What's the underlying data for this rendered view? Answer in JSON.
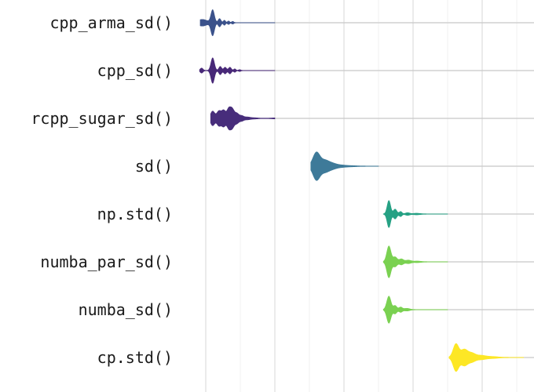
{
  "chart_data": {
    "type": "violin",
    "title": "",
    "xlabel": "",
    "ylabel": "",
    "x_axis_ticks_printed": false,
    "grid": "vertical",
    "categories": [
      "cpp_arma_sd()",
      "cpp_sd()",
      "rcpp_sugar_sd()",
      "sd()",
      "np.std()",
      "numba_par_sd()",
      "numba_sd()",
      "cp.std()"
    ],
    "series": [
      {
        "category": "cpp_arma_sd()",
        "color": "#3b528b",
        "median": 0.1,
        "range": [
          -0.05,
          1.0
        ],
        "modes": [
          [
            -0.05,
            0.07,
            4
          ],
          [
            0.1,
            0.025,
            16
          ],
          [
            0.2,
            0.02,
            5
          ],
          [
            0.27,
            0.015,
            3
          ],
          [
            0.33,
            0.015,
            2
          ],
          [
            0.39,
            0.015,
            1.5
          ]
        ]
      },
      {
        "category": "cpp_sd()",
        "color": "#482878",
        "median": 0.1,
        "range": [
          -0.06,
          1.0
        ],
        "modes": [
          [
            -0.06,
            0.02,
            3
          ],
          [
            0.1,
            0.025,
            16
          ],
          [
            0.21,
            0.02,
            5
          ],
          [
            0.28,
            0.02,
            4
          ],
          [
            0.35,
            0.02,
            4
          ],
          [
            0.42,
            0.015,
            2
          ],
          [
            0.49,
            0.015,
            1
          ]
        ]
      },
      {
        "category": "rcpp_sugar_sd()",
        "color": "#472d7b",
        "median": 0.38,
        "range": [
          0.1,
          1.0
        ],
        "modes": [
          [
            0.1,
            0.03,
            9
          ],
          [
            0.19,
            0.03,
            9
          ],
          [
            0.26,
            0.03,
            10
          ],
          [
            0.33,
            0.025,
            10
          ],
          [
            0.38,
            0.03,
            12
          ],
          [
            0.45,
            0.03,
            6
          ],
          [
            0.52,
            0.03,
            3
          ],
          [
            0.6,
            0.04,
            1.5
          ],
          [
            0.7,
            0.05,
            0.6
          ],
          [
            1.03,
            0.07,
            0.5
          ]
        ]
      },
      {
        "category": "sd()",
        "color": "#3e7a99",
        "median": 1.6,
        "range": [
          1.55,
          2.5
        ],
        "modes": [
          [
            1.6,
            0.05,
            17
          ],
          [
            1.72,
            0.06,
            7
          ],
          [
            1.83,
            0.06,
            3
          ],
          [
            1.95,
            0.07,
            1.2
          ],
          [
            2.1,
            0.08,
            0.5
          ]
        ]
      },
      {
        "category": "np.std()",
        "color": "#26a184",
        "median": 2.65,
        "range": [
          2.6,
          3.5
        ],
        "modes": [
          [
            2.65,
            0.025,
            17
          ],
          [
            2.74,
            0.025,
            6
          ],
          [
            2.82,
            0.02,
            3
          ],
          [
            2.92,
            0.03,
            1.5
          ],
          [
            3.05,
            0.05,
            0.8
          ]
        ]
      },
      {
        "category": "numba_par_sd()",
        "color": "#7ad151",
        "median": 2.65,
        "range": [
          2.6,
          3.5
        ],
        "modes": [
          [
            2.65,
            0.03,
            20
          ],
          [
            2.74,
            0.03,
            6
          ],
          [
            2.83,
            0.03,
            3.5
          ],
          [
            2.93,
            0.04,
            2
          ],
          [
            3.06,
            0.05,
            0.8
          ]
        ]
      },
      {
        "category": "numba_sd()",
        "color": "#7ad151",
        "median": 2.65,
        "range": [
          2.6,
          3.5
        ],
        "modes": [
          [
            2.65,
            0.03,
            17
          ],
          [
            2.74,
            0.025,
            5
          ],
          [
            2.82,
            0.025,
            3
          ],
          [
            2.91,
            0.04,
            1.5
          ]
        ]
      },
      {
        "category": "cp.std()",
        "color": "#fde725",
        "median": 3.62,
        "range": [
          3.55,
          4.6
        ],
        "modes": [
          [
            3.62,
            0.04,
            17
          ],
          [
            3.74,
            0.05,
            10
          ],
          [
            3.85,
            0.05,
            5
          ],
          [
            3.98,
            0.07,
            2.5
          ],
          [
            4.15,
            0.08,
            1
          ]
        ]
      }
    ],
    "xlim": [
      -0.25,
      4.75
    ],
    "major_gridlines": [
      0,
      1,
      2,
      3,
      4
    ],
    "minor_gridlines": [
      0.5,
      1.5,
      2.5,
      3.5,
      4.5
    ]
  }
}
